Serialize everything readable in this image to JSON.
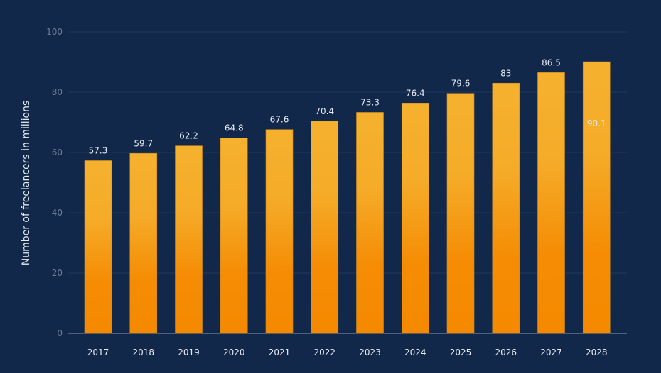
{
  "chart_data": {
    "type": "bar",
    "categories": [
      "2017",
      "2018",
      "2019",
      "2020",
      "2021",
      "2022",
      "2023",
      "2024",
      "2025",
      "2026",
      "2027",
      "2028"
    ],
    "values": [
      57.3,
      59.7,
      62.2,
      64.8,
      67.6,
      70.4,
      73.3,
      76.4,
      79.6,
      83,
      86.5,
      90.1
    ],
    "data_labels": [
      "57.3",
      "59.7",
      "62.2",
      "64.8",
      "67.6",
      "70.4",
      "73.3",
      "76.4",
      "79.6",
      "83",
      "86.5",
      "90.1"
    ],
    "xlabel": "",
    "ylabel": "Number of freelancers in millions",
    "ylim": [
      0,
      100
    ],
    "yticks": [
      0,
      20,
      40,
      60,
      80,
      100
    ],
    "grid": true,
    "colors": {
      "background": "#12284a",
      "bar_top": "#f5b12e",
      "bar_bottom": "#f58a00",
      "grid": "#23395c",
      "axis": "#8a9ab3"
    }
  }
}
